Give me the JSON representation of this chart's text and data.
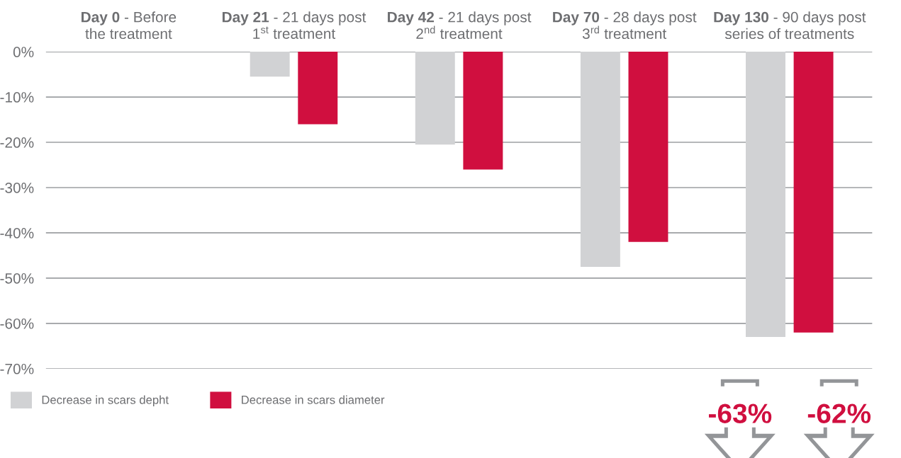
{
  "chart_data": {
    "type": "bar",
    "categories": [
      "Day 0 - Before\nthe treatment",
      "Day 21 - 21 days post\n1$^{st}$ treatment",
      "Day 42 - 21 days post\n2$^{nd}$ treatment",
      "Day 70 - 28 days post\n3$^{rd}$ treatment",
      "Day 130 - 90 days post\nseries of treatments"
    ],
    "series": [
      {
        "name": "Decrease in scars depht",
        "color": "#d1d2d4",
        "values": [
          null,
          -5.5,
          -20.5,
          -47.5,
          -63
        ],
        "value_labels": [
          null,
          null,
          null,
          null,
          "-63%"
        ]
      },
      {
        "name": "Decrease in scars diameter",
        "color": "#d00f3f",
        "values": [
          null,
          -16,
          -26,
          -42,
          -62
        ],
        "value_labels": [
          null,
          null,
          null,
          null,
          "-62%"
        ]
      }
    ],
    "ylim": [
      -70,
      0
    ],
    "yticks": [
      {
        "value": 0,
        "label": "0%"
      },
      {
        "value": -10,
        "label": "-10%"
      },
      {
        "value": -20,
        "label": "-20%"
      },
      {
        "value": -30,
        "label": "-30%"
      },
      {
        "value": -40,
        "label": "-40%"
      },
      {
        "value": -50,
        "label": "-50%"
      },
      {
        "value": -60,
        "label": "-60%"
      },
      {
        "value": -70,
        "label": "-70%"
      }
    ],
    "grid": "y",
    "legend": "bottom left"
  }
}
